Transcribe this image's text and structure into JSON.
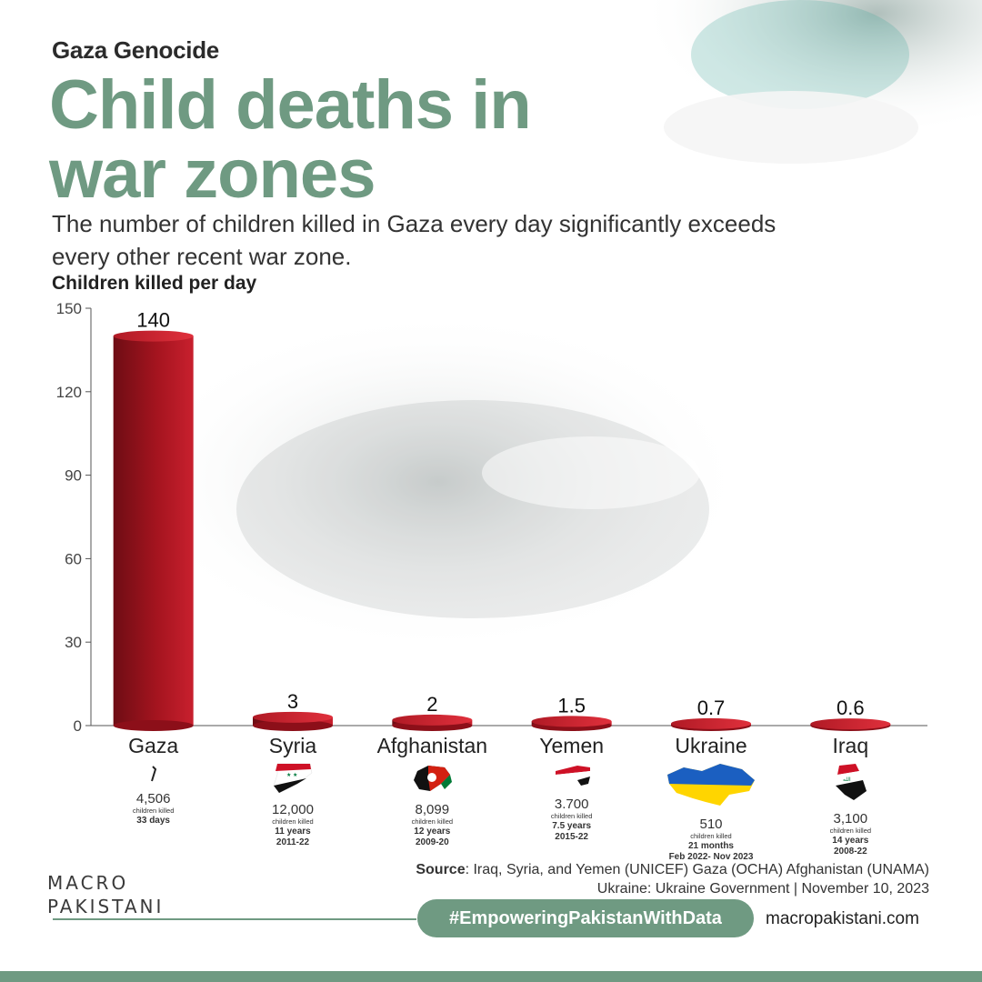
{
  "header": {
    "kicker": "Gaza Genocide",
    "title": "Child deaths in war zones",
    "subtitle": "The number of children killed in Gaza every day significantly exceeds every other recent war zone."
  },
  "colors": {
    "accent": "#6f9a82",
    "bar": "#c8202e",
    "bar_dark": "#6e0d14"
  },
  "chart_data": {
    "type": "bar",
    "ylabel": "Children killed per day",
    "ylim": [
      0,
      150
    ],
    "yticks": [
      "0",
      "30",
      "60",
      "90",
      "120",
      "150"
    ],
    "categories": [
      "Gaza",
      "Syria",
      "Afghanistan",
      "Yemen",
      "Ukraine",
      "Iraq"
    ],
    "values": [
      140,
      3,
      2,
      1.5,
      0.7,
      0.6
    ],
    "value_labels": [
      "140",
      "3",
      "2",
      "1.5",
      "0.7",
      "0.6"
    ]
  },
  "country_details": [
    {
      "name": "Gaza",
      "total": "4,506",
      "unit": "children killed",
      "period": "33 days",
      "years": ""
    },
    {
      "name": "Syria",
      "total": "12,000",
      "unit": "children killed",
      "period": "11 years",
      "years": "2011-22"
    },
    {
      "name": "Afghanistan",
      "total": "8,099",
      "unit": "children killed",
      "period": "12 years",
      "years": "2009-20"
    },
    {
      "name": "Yemen",
      "total": "3.700",
      "unit": "children killed",
      "period": "7.5 years",
      "years": "2015-22"
    },
    {
      "name": "Ukraine",
      "total": "510",
      "unit": "children killed",
      "period": "21 months",
      "years": "Feb 2022- Nov 2023"
    },
    {
      "name": "Iraq",
      "total": "3,100",
      "unit": "children killed",
      "period": "14 years",
      "years": "2008-22"
    }
  ],
  "footer": {
    "source_label": "Source",
    "source_line1": ": Iraq, Syria, and Yemen (UNICEF) Gaza (OCHA) Afghanistan (UNAMA)",
    "source_line2": "Ukraine: Ukraine Government | November 10, 2023",
    "logo_line1": "MACRO",
    "logo_line2": "PAKISTANI",
    "hashtag": "#EmpoweringPakistanWithData",
    "website": "macropakistani.com"
  }
}
